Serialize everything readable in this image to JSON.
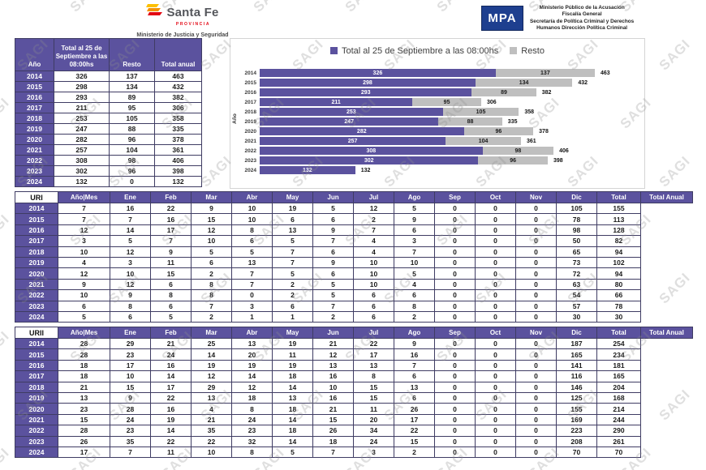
{
  "header": {
    "santafe": {
      "brand": "Santa Fe",
      "province": "PROVINCIA",
      "ministry": "Ministerio de Justicia y Seguridad"
    },
    "mpa": {
      "abbr": "MPA",
      "lines": [
        "Ministerio Público de la Acusación",
        "Fiscalía General",
        "Secretaría de Política Criminal y Derechos",
        "Humanos Dirección Política Criminal"
      ]
    }
  },
  "watermark": {
    "text": "SAGI"
  },
  "colors": {
    "purple": "#5b529e",
    "bar_gray": "#bfbfbf",
    "mpa_blue": "#1e3f8f",
    "red": "#e30613",
    "orange": "#f39200",
    "yellow": "#fcbf00"
  },
  "summary_table": {
    "col_headers": [
      "Año",
      "Total al 25 de Septiembre a las 08:00hs",
      "Resto",
      "Total anual"
    ],
    "rows": [
      [
        "2014",
        326,
        137,
        463
      ],
      [
        "2015",
        298,
        134,
        432
      ],
      [
        "2016",
        293,
        89,
        382
      ],
      [
        "2017",
        211,
        95,
        306
      ],
      [
        "2018",
        253,
        105,
        358
      ],
      [
        "2019",
        247,
        88,
        335
      ],
      [
        "2020",
        282,
        96,
        378
      ],
      [
        "2021",
        257,
        104,
        361
      ],
      [
        "2022",
        308,
        98,
        406
      ],
      [
        "2023",
        302,
        96,
        398
      ],
      [
        "2024",
        132,
        0,
        132
      ]
    ]
  },
  "chart_data": {
    "type": "bar",
    "orientation": "horizontal",
    "stacked": true,
    "title": "",
    "ylabel": "Año",
    "xlabel": "",
    "xlim": [
      0,
      500
    ],
    "grid": false,
    "legend_position": "top",
    "categories": [
      "2014",
      "2015",
      "2016",
      "2017",
      "2018",
      "2019",
      "2020",
      "2021",
      "2022",
      "2023",
      "2024"
    ],
    "series": [
      {
        "name": "Total al 25 de Septiembre a las 08:00hs",
        "color": "#5b529e",
        "values": [
          326,
          298,
          293,
          211,
          253,
          247,
          282,
          257,
          308,
          302,
          132
        ]
      },
      {
        "name": "Resto",
        "color": "#bfbfbf",
        "values": [
          137,
          134,
          89,
          95,
          105,
          88,
          96,
          104,
          98,
          96,
          0
        ]
      }
    ],
    "totals": [
      463,
      432,
      382,
      306,
      358,
      335,
      378,
      361,
      406,
      398,
      132
    ]
  },
  "unit_tables": [
    {
      "label": "URI",
      "headers": [
        "Año|Mes",
        "Ene",
        "Feb",
        "Mar",
        "Abr",
        "May",
        "Jun",
        "Jul",
        "Ago",
        "Sep",
        "Oct",
        "Nov",
        "Dic",
        "Total",
        "Total Anual"
      ],
      "rows": [
        [
          "2014",
          7,
          16,
          22,
          9,
          10,
          19,
          5,
          12,
          5,
          0,
          0,
          0,
          105,
          155
        ],
        [
          "2015",
          7,
          7,
          16,
          15,
          10,
          6,
          6,
          2,
          9,
          0,
          0,
          0,
          78,
          113
        ],
        [
          "2016",
          12,
          14,
          17,
          12,
          8,
          13,
          9,
          7,
          6,
          0,
          0,
          0,
          98,
          128
        ],
        [
          "2017",
          3,
          5,
          7,
          10,
          6,
          5,
          7,
          4,
          3,
          0,
          0,
          0,
          50,
          82
        ],
        [
          "2018",
          10,
          12,
          9,
          5,
          5,
          7,
          6,
          4,
          7,
          0,
          0,
          0,
          65,
          94
        ],
        [
          "2019",
          4,
          3,
          11,
          6,
          13,
          7,
          9,
          10,
          10,
          0,
          0,
          0,
          73,
          102
        ],
        [
          "2020",
          12,
          10,
          15,
          2,
          7,
          5,
          6,
          10,
          5,
          0,
          0,
          0,
          72,
          94
        ],
        [
          "2021",
          9,
          12,
          6,
          8,
          7,
          2,
          5,
          10,
          4,
          0,
          0,
          0,
          63,
          80
        ],
        [
          "2022",
          10,
          9,
          8,
          8,
          0,
          2,
          5,
          6,
          6,
          0,
          0,
          0,
          54,
          66
        ],
        [
          "2023",
          6,
          8,
          6,
          7,
          3,
          6,
          7,
          6,
          8,
          0,
          0,
          0,
          57,
          78
        ],
        [
          "2024",
          5,
          6,
          5,
          2,
          1,
          1,
          2,
          6,
          2,
          0,
          0,
          0,
          30,
          30
        ]
      ]
    },
    {
      "label": "URII",
      "headers": [
        "Año|Mes",
        "Ene",
        "Feb",
        "Mar",
        "Abr",
        "May",
        "Jun",
        "Jul",
        "Ago",
        "Sep",
        "Oct",
        "Nov",
        "Dic",
        "Total",
        "Total Anual"
      ],
      "rows": [
        [
          "2014",
          28,
          29,
          21,
          25,
          13,
          19,
          21,
          22,
          9,
          0,
          0,
          0,
          187,
          254
        ],
        [
          "2015",
          28,
          23,
          24,
          14,
          20,
          11,
          12,
          17,
          16,
          0,
          0,
          0,
          165,
          234
        ],
        [
          "2016",
          18,
          17,
          16,
          19,
          19,
          19,
          13,
          13,
          7,
          0,
          0,
          0,
          141,
          181
        ],
        [
          "2017",
          18,
          10,
          14,
          12,
          14,
          18,
          16,
          8,
          6,
          0,
          0,
          0,
          116,
          165
        ],
        [
          "2018",
          21,
          15,
          17,
          29,
          12,
          14,
          10,
          15,
          13,
          0,
          0,
          0,
          146,
          204
        ],
        [
          "2019",
          13,
          9,
          22,
          13,
          18,
          13,
          16,
          15,
          6,
          0,
          0,
          0,
          125,
          168
        ],
        [
          "2020",
          23,
          28,
          16,
          4,
          8,
          18,
          21,
          11,
          26,
          0,
          0,
          0,
          155,
          214
        ],
        [
          "2021",
          15,
          24,
          19,
          21,
          24,
          14,
          15,
          20,
          17,
          0,
          0,
          0,
          169,
          244
        ],
        [
          "2022",
          28,
          23,
          14,
          35,
          23,
          18,
          26,
          34,
          22,
          0,
          0,
          0,
          223,
          290
        ],
        [
          "2023",
          26,
          35,
          22,
          22,
          32,
          14,
          18,
          24,
          15,
          0,
          0,
          0,
          208,
          261
        ],
        [
          "2024",
          17,
          7,
          11,
          10,
          8,
          5,
          7,
          3,
          2,
          0,
          0,
          0,
          70,
          70
        ]
      ]
    }
  ]
}
